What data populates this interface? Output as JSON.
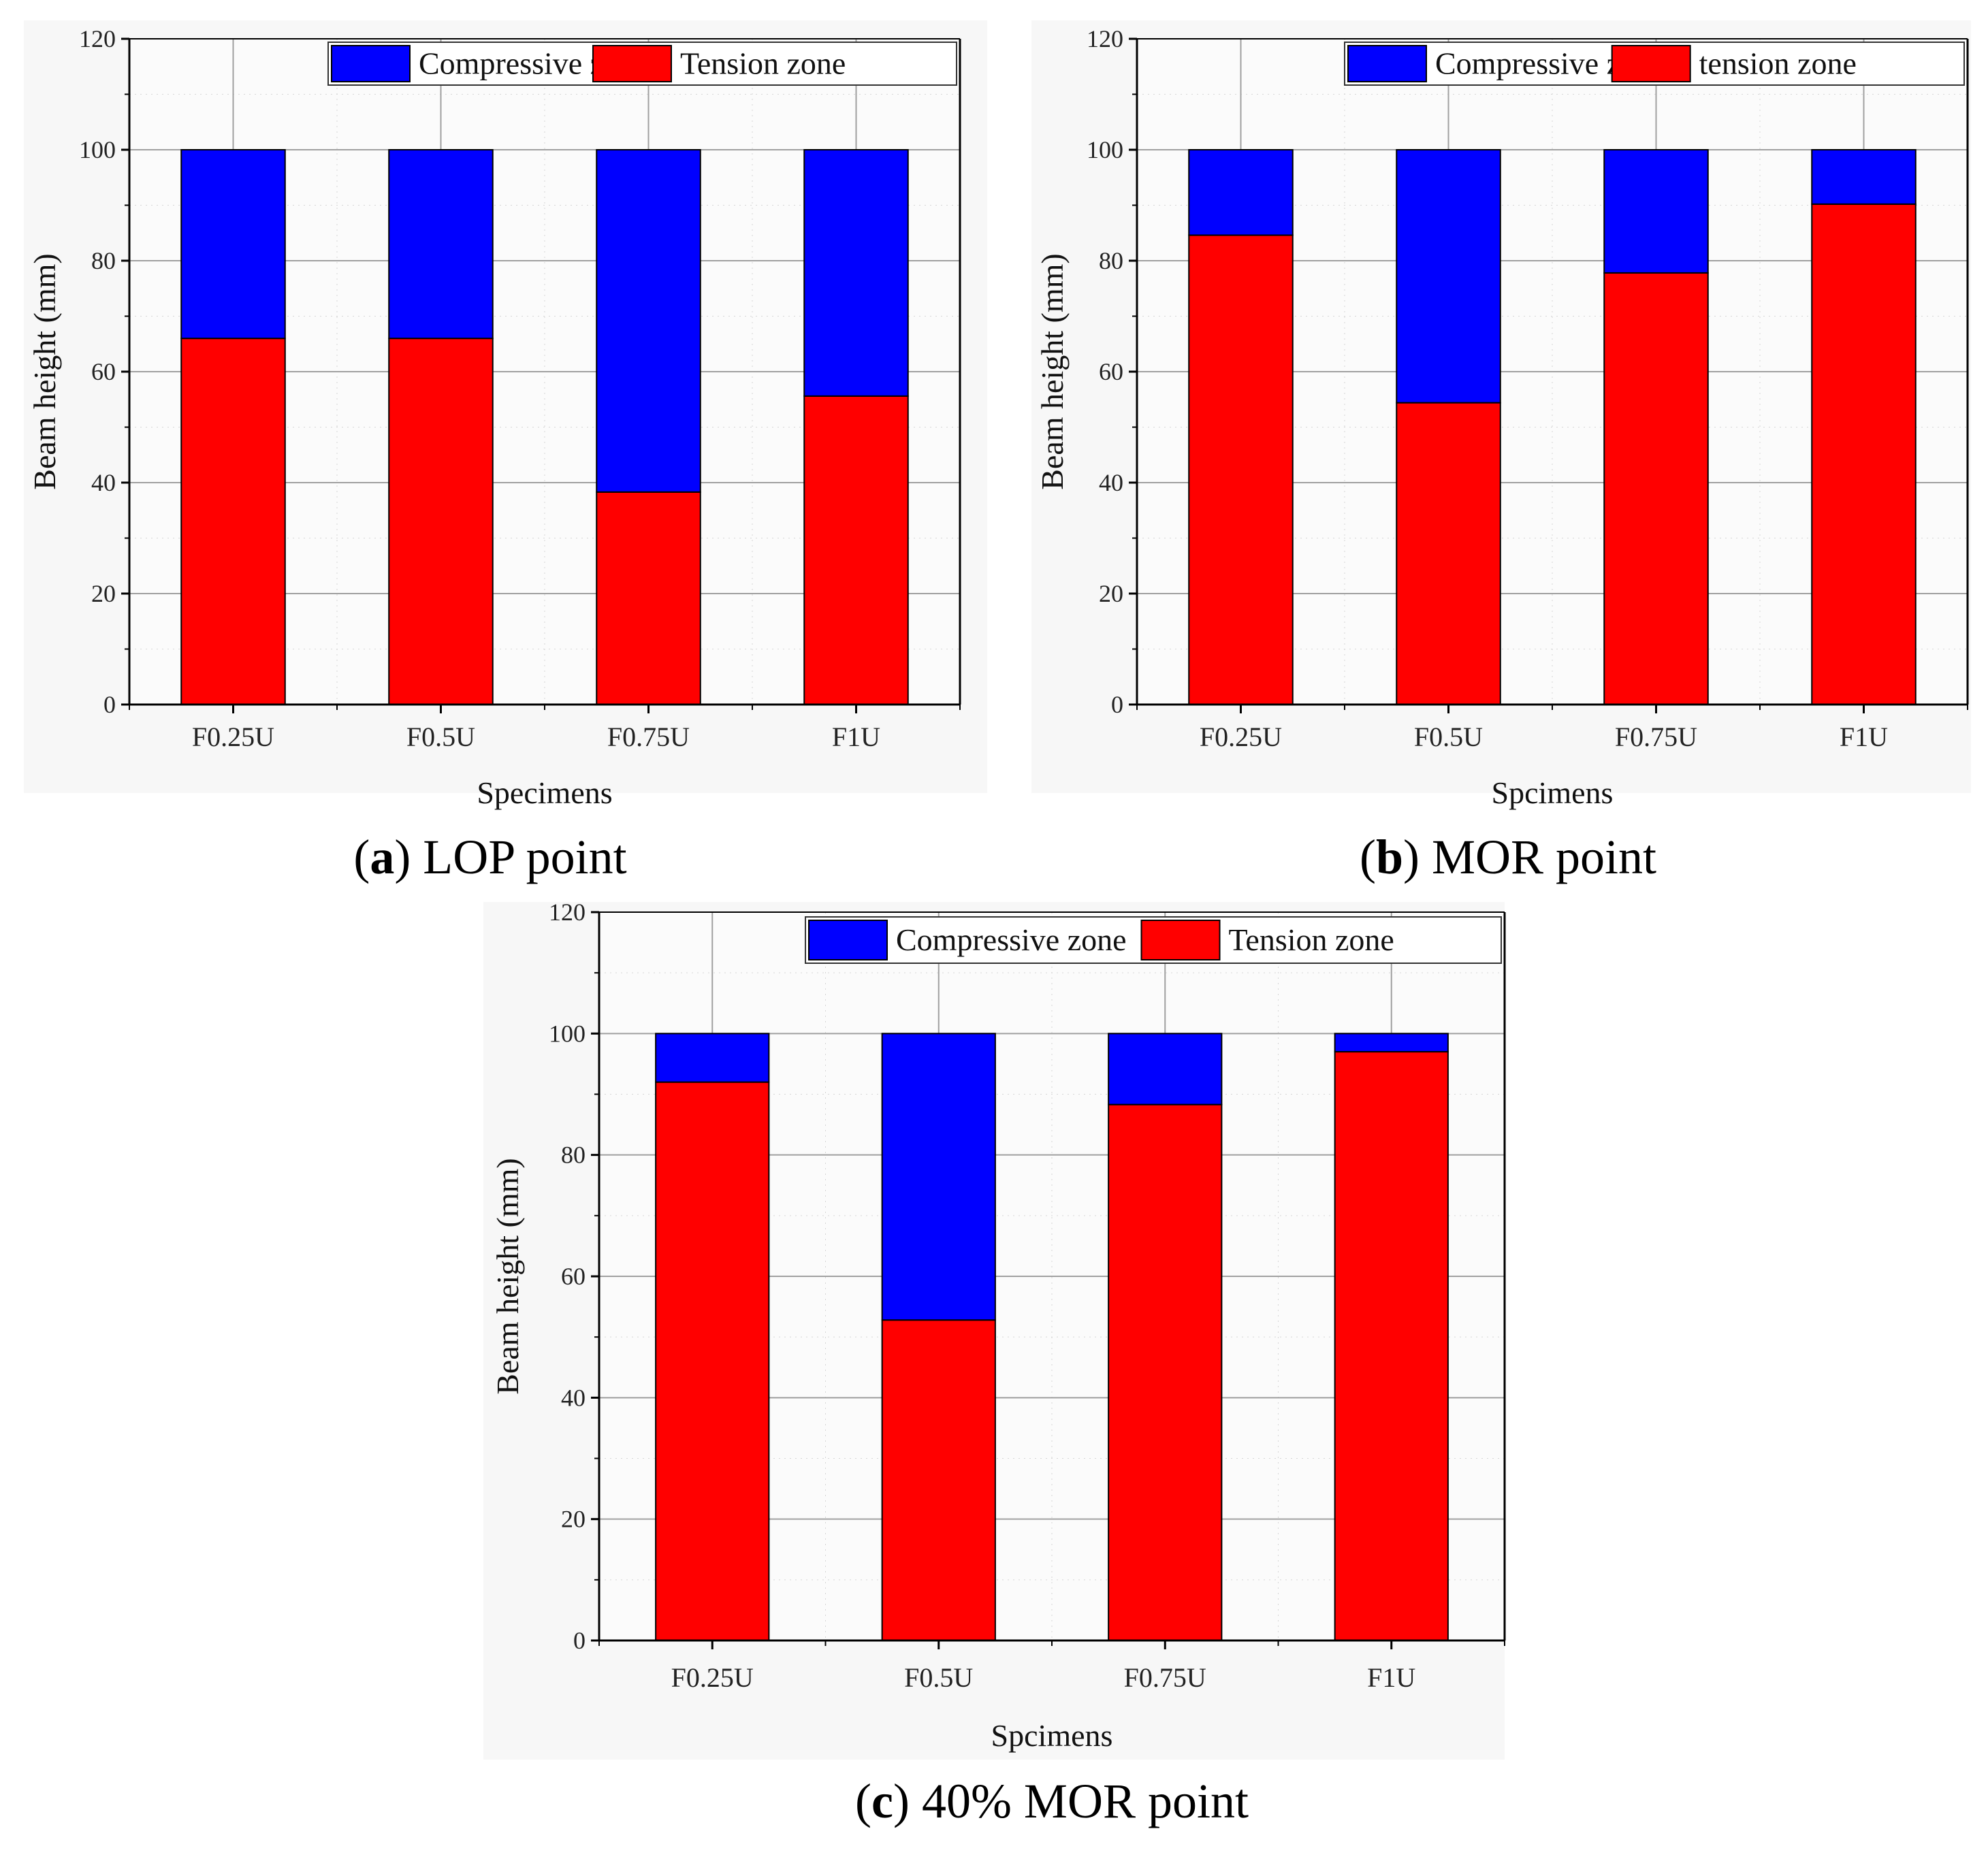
{
  "colors": {
    "compressive": "#0000ff",
    "tension": "#ff0000",
    "grid": "#a0a0a0",
    "axis": "#000000"
  },
  "chart_data": [
    {
      "type": "bar",
      "stacked": true,
      "caption_letter": "a",
      "caption_text": "LOP point",
      "xlabel": "Specimens",
      "ylabel": "Beam height (mm)",
      "ylim": [
        0,
        120
      ],
      "yticks": [
        "0",
        "20",
        "40",
        "60",
        "80",
        "100",
        "120"
      ],
      "categories": [
        "F0.25U",
        "F0.5U",
        "F0.75U",
        "F1U"
      ],
      "legend": {
        "position": "top-right",
        "items": [
          "Compressive zone",
          "Tension zone"
        ]
      },
      "series": [
        {
          "name": "Tension zone",
          "values": [
            66,
            66,
            38.3,
            55.6
          ]
        },
        {
          "name": "Compressive zone",
          "values": [
            34,
            34,
            61.7,
            44.4
          ]
        }
      ]
    },
    {
      "type": "bar",
      "stacked": true,
      "caption_letter": "b",
      "caption_text": "MOR point",
      "xlabel": "Spcimens",
      "ylabel": "Beam height (mm)",
      "ylim": [
        0,
        120
      ],
      "yticks": [
        "0",
        "20",
        "40",
        "60",
        "80",
        "100",
        "120"
      ],
      "categories": [
        "F0.25U",
        "F0.5U",
        "F0.75U",
        "F1U"
      ],
      "legend": {
        "position": "top-right",
        "items": [
          "Compressive zone",
          "tension zone"
        ]
      },
      "series": [
        {
          "name": "tension zone",
          "values": [
            84.6,
            54.4,
            77.8,
            90.2
          ]
        },
        {
          "name": "Compressive zone",
          "values": [
            15.4,
            45.6,
            22.2,
            9.8
          ]
        }
      ]
    },
    {
      "type": "bar",
      "stacked": true,
      "caption_letter": "c",
      "caption_text": "40% MOR point",
      "xlabel": "Spcimens",
      "ylabel": "Beam height (mm)",
      "ylim": [
        0,
        120
      ],
      "yticks": [
        "0",
        "20",
        "40",
        "60",
        "80",
        "100",
        "120"
      ],
      "categories": [
        "F0.25U",
        "F0.5U",
        "F0.75U",
        "F1U"
      ],
      "legend": {
        "position": "top-right",
        "items": [
          "Compressive zone",
          "Tension zone"
        ]
      },
      "series": [
        {
          "name": "Tension zone",
          "values": [
            92,
            52.8,
            88.3,
            97
          ]
        },
        {
          "name": "Compressive zone",
          "values": [
            8,
            47.2,
            11.7,
            3
          ]
        }
      ]
    }
  ]
}
